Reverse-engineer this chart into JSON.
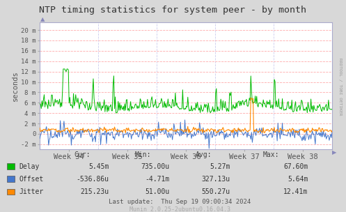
{
  "title": "NTP timing statistics for system peer - by month",
  "ylabel": "seconds",
  "right_label": "RRDTOOL / TOBI OETIKER",
  "background_color": "#d8d8d8",
  "plot_bg_color": "#ffffff",
  "grid_color_h": "#ffaaaa",
  "grid_color_v": "#ccccee",
  "yticks": [
    -2,
    0,
    2,
    4,
    6,
    8,
    10,
    12,
    14,
    16,
    18,
    20
  ],
  "ytick_labels": [
    "-2 m",
    "0",
    "2 m",
    "4 m",
    "6 m",
    "8 m",
    "10 m",
    "12 m",
    "14 m",
    "16 m",
    "18 m",
    "20 m"
  ],
  "ylim": [
    -3.0,
    21.5
  ],
  "xtick_labels": [
    "Week 34",
    "Week 35",
    "Week 36",
    "Week 37",
    "Week 38"
  ],
  "legend_items": [
    "Delay",
    "Offset",
    "Jitter"
  ],
  "delay_color": "#00bb00",
  "offset_color": "#4477cc",
  "jitter_color": "#ff8800",
  "stats_header": [
    "Cur:",
    "Min:",
    "Avg:",
    "Max:"
  ],
  "stats_delay": [
    "5.45m",
    "735.00u",
    "5.27m",
    "67.60m"
  ],
  "stats_offset": [
    "-536.86u",
    "-4.71m",
    "327.13u",
    "5.64m"
  ],
  "stats_jitter": [
    "215.23u",
    "51.00u",
    "550.27u",
    "12.41m"
  ],
  "last_update": "Last update:  Thu Sep 19 09:00:34 2024",
  "munin_version": "Munin 2.0.25-2ubuntu0.16.04.3",
  "n_points": 400
}
